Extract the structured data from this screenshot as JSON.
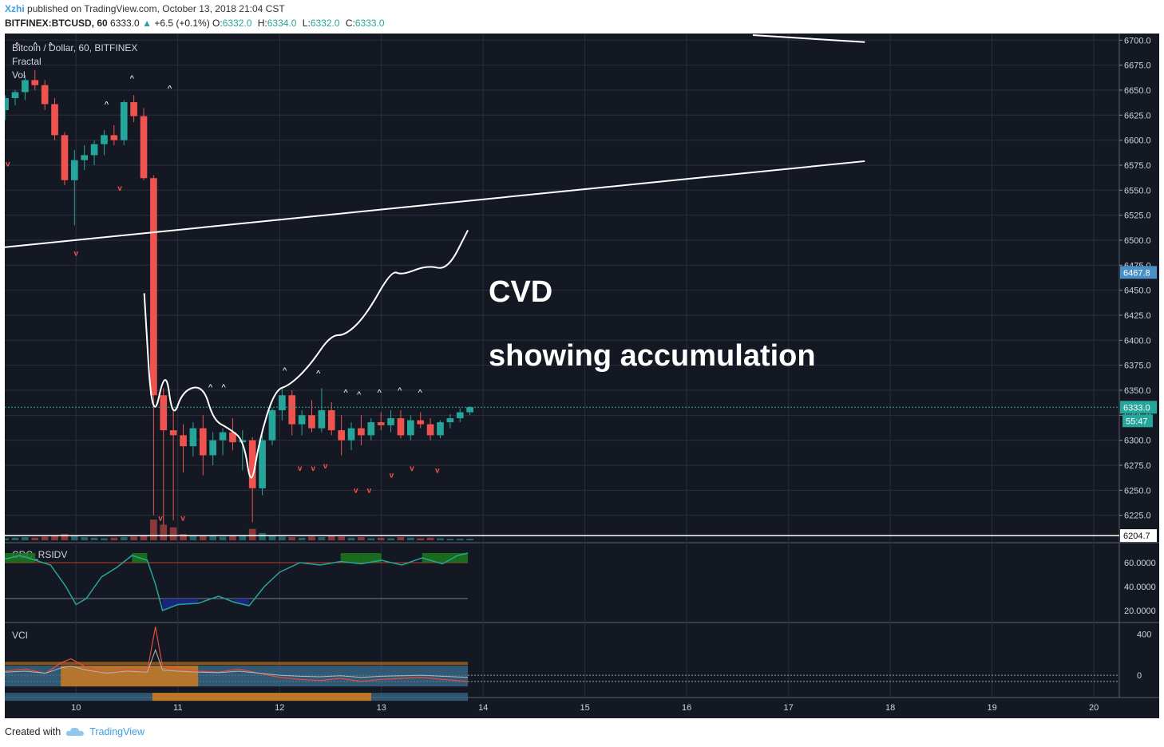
{
  "header": {
    "author": "Xzhi",
    "published_text": "published on TradingView.com, October 13, 2018 21:04 CST"
  },
  "ohlc": {
    "symbol": "BITFINEX:BTCUSD, 60",
    "last": "6333.0",
    "change_arrow": "▲",
    "change": "+6.5 (+0.1%)",
    "o_label": "O:",
    "o": "6332.0",
    "h_label": "H:",
    "h": "6334.0",
    "l_label": "L:",
    "l": "6332.0",
    "c_label": "C:",
    "c": "6333.0"
  },
  "footer": {
    "created_with": "Created with",
    "brand": "TradingView"
  },
  "colors": {
    "background": "#141823",
    "grid": "#2a2f3d",
    "up": "#26a69a",
    "down": "#ef5350",
    "axis_text": "#d0d3da",
    "last_price_badge": "#26a69a",
    "highlight_badge": "#4a90c8",
    "rsi_line": "#26a69a",
    "rsi_overbought_fill": "#1b7a1b",
    "rsi_oversold_fill": "#1a2a8a",
    "vci_orange": "#d67c1c",
    "vci_blue": "#3b6f8f"
  },
  "chart_data": [
    {
      "type": "candlestick",
      "legend": [
        "Bitcoin / Dollar, 60, BITFINEX",
        "Fractal",
        "Vol"
      ],
      "y_ticks": [
        6225.0,
        6250.0,
        6275.0,
        6300.0,
        6325.0,
        6350.0,
        6375.0,
        6400.0,
        6425.0,
        6450.0,
        6475.0,
        6500.0,
        6525.0,
        6550.0,
        6575.0,
        6600.0,
        6625.0,
        6650.0,
        6675.0,
        6700.0
      ],
      "ylim": [
        6200,
        6705
      ],
      "x_ticks": [
        "10",
        "11",
        "12",
        "13",
        "14",
        "15",
        "16",
        "17",
        "18",
        "19",
        "20"
      ],
      "x_tick_values": [
        10,
        11,
        12,
        13,
        14,
        15,
        16,
        17,
        18,
        19,
        20
      ],
      "xlim": [
        9.3,
        20.25
      ],
      "last_price": "6333.0",
      "last_price_value": 6333.0,
      "countdown": "55:47",
      "line_value_label": "6467.8",
      "line_value": 6467.8,
      "low_line_label": "6204.7",
      "low_line_value": 6204.7,
      "trendlines": [
        {
          "x": [
            9.3,
            17.75
          ],
          "y": [
            6493,
            6579
          ]
        },
        {
          "x": [
            16.65,
            17.75
          ],
          "y": [
            6705,
            6698
          ]
        }
      ],
      "annotations": [
        "CVD",
        "showing accumulation"
      ],
      "cvd_curve": [
        [
          10.67,
          6447
        ],
        [
          10.75,
          6312
        ],
        [
          10.88,
          6375
        ],
        [
          10.95,
          6320
        ],
        [
          11.05,
          6350
        ],
        [
          11.25,
          6355
        ],
        [
          11.35,
          6320
        ],
        [
          11.5,
          6312
        ],
        [
          11.65,
          6300
        ],
        [
          11.72,
          6250
        ],
        [
          11.8,
          6300
        ],
        [
          11.95,
          6350
        ],
        [
          12.1,
          6355
        ],
        [
          12.3,
          6375
        ],
        [
          12.5,
          6405
        ],
        [
          12.65,
          6405
        ],
        [
          12.85,
          6425
        ],
        [
          13.1,
          6470
        ],
        [
          13.2,
          6465
        ],
        [
          13.45,
          6475
        ],
        [
          13.65,
          6470
        ],
        [
          13.85,
          6510
        ]
      ],
      "candles": [
        [
          6630,
          6645,
          6620,
          6642
        ],
        [
          6642,
          6650,
          6635,
          6648
        ],
        [
          6648,
          6665,
          6640,
          6660
        ],
        [
          6660,
          6670,
          6650,
          6655
        ],
        [
          6655,
          6660,
          6630,
          6636
        ],
        [
          6636,
          6642,
          6600,
          6605
        ],
        [
          6605,
          6608,
          6555,
          6560
        ],
        [
          6560,
          6590,
          6515,
          6580
        ],
        [
          6580,
          6595,
          6570,
          6585
        ],
        [
          6585,
          6600,
          6575,
          6596
        ],
        [
          6596,
          6610,
          6585,
          6605
        ],
        [
          6605,
          6615,
          6595,
          6600
        ],
        [
          6600,
          6640,
          6595,
          6638
        ],
        [
          6638,
          6645,
          6618,
          6624
        ],
        [
          6624,
          6632,
          6560,
          6562
        ],
        [
          6562,
          6565,
          6225,
          6345
        ],
        [
          6345,
          6352,
          6215,
          6310
        ],
        [
          6310,
          6330,
          6220,
          6305
        ],
        [
          6305,
          6316,
          6268,
          6294
        ],
        [
          6294,
          6318,
          6284,
          6312
        ],
        [
          6312,
          6325,
          6265,
          6285
        ],
        [
          6285,
          6308,
          6275,
          6300
        ],
        [
          6300,
          6312,
          6285,
          6308
        ],
        [
          6308,
          6322,
          6290,
          6298
        ],
        [
          6298,
          6310,
          6270,
          6300
        ],
        [
          6300,
          6303,
          6218,
          6252
        ],
        [
          6252,
          6305,
          6245,
          6300
        ],
        [
          6300,
          6332,
          6295,
          6330
        ],
        [
          6330,
          6352,
          6320,
          6345
        ],
        [
          6345,
          6350,
          6305,
          6316
        ],
        [
          6316,
          6330,
          6305,
          6325
        ],
        [
          6325,
          6340,
          6308,
          6312
        ],
        [
          6312,
          6352,
          6308,
          6330
        ],
        [
          6330,
          6338,
          6305,
          6310
        ],
        [
          6310,
          6325,
          6285,
          6300
        ],
        [
          6300,
          6318,
          6290,
          6312
        ],
        [
          6312,
          6325,
          6295,
          6305
        ],
        [
          6305,
          6322,
          6300,
          6318
        ],
        [
          6318,
          6328,
          6310,
          6315
        ],
        [
          6315,
          6330,
          6308,
          6322
        ],
        [
          6322,
          6330,
          6302,
          6305
        ],
        [
          6305,
          6325,
          6300,
          6320
        ],
        [
          6320,
          6328,
          6312,
          6316
        ],
        [
          6316,
          6322,
          6300,
          6305
        ],
        [
          6305,
          6320,
          6302,
          6318
        ],
        [
          6318,
          6326,
          6312,
          6322
        ],
        [
          6322,
          6332,
          6318,
          6328
        ],
        [
          6328,
          6334,
          6325,
          6333
        ]
      ],
      "volumes": [
        4,
        5,
        6,
        5,
        7,
        9,
        12,
        8,
        6,
        5,
        4,
        5,
        6,
        7,
        10,
        40,
        30,
        25,
        12,
        10,
        8,
        9,
        7,
        10,
        9,
        22,
        14,
        8,
        7,
        6,
        5,
        7,
        6,
        8,
        7,
        5,
        6,
        4,
        5,
        4,
        6,
        5,
        4,
        5,
        4,
        3,
        3,
        3
      ],
      "fractal_up": [
        [
          9.42,
          6695
        ],
        [
          9.6,
          6695
        ],
        [
          9.75,
          6695
        ],
        [
          10.3,
          6636
        ],
        [
          10.55,
          6662
        ],
        [
          10.92,
          6652
        ],
        [
          11.32,
          6353
        ],
        [
          11.45,
          6353
        ],
        [
          12.05,
          6370
        ],
        [
          12.38,
          6367
        ],
        [
          12.65,
          6348
        ],
        [
          12.78,
          6346
        ],
        [
          12.98,
          6348
        ],
        [
          13.18,
          6350
        ],
        [
          13.38,
          6348
        ]
      ],
      "fractal_down": [
        [
          9.33,
          6576
        ],
        [
          10.0,
          6487
        ],
        [
          10.43,
          6552
        ],
        [
          10.83,
          6222
        ],
        [
          11.05,
          6222
        ],
        [
          12.2,
          6272
        ],
        [
          12.33,
          6272
        ],
        [
          12.45,
          6274
        ],
        [
          12.75,
          6250
        ],
        [
          12.88,
          6250
        ],
        [
          13.1,
          6265
        ],
        [
          13.3,
          6272
        ],
        [
          13.55,
          6270
        ]
      ]
    },
    {
      "type": "line",
      "name": "CDC_RSIDV",
      "y_ticks": [
        20.0,
        40.0,
        60.0
      ],
      "y_tick_labels": [
        "20.0000",
        "40.0000",
        "60.0000"
      ],
      "ylim": [
        12,
        74
      ],
      "overbought": 60,
      "oversold": 30,
      "x": [
        9.3,
        9.45,
        9.6,
        9.75,
        9.9,
        10.0,
        10.1,
        10.25,
        10.4,
        10.55,
        10.7,
        10.78,
        10.85,
        11.0,
        11.2,
        11.4,
        11.55,
        11.7,
        11.85,
        12.0,
        12.2,
        12.4,
        12.6,
        12.8,
        13.0,
        13.2,
        13.4,
        13.6,
        13.75,
        13.85
      ],
      "values": [
        63,
        66,
        62,
        58,
        40,
        25,
        30,
        48,
        56,
        66,
        62,
        42,
        20,
        25,
        26,
        32,
        27,
        24,
        40,
        52,
        60,
        58,
        61,
        59,
        62,
        58,
        64,
        59,
        66,
        68
      ]
    },
    {
      "type": "area",
      "name": "VCI",
      "y_ticks": [
        0,
        400
      ],
      "y_tick_labels": [
        "0",
        "400"
      ],
      "ylim": [
        -200,
        480
      ],
      "reference_lines": [
        0,
        -60
      ],
      "x": [
        9.3,
        9.5,
        9.7,
        9.85,
        9.95,
        10.1,
        10.3,
        10.5,
        10.7,
        10.78,
        10.85,
        11.0,
        11.2,
        11.4,
        11.6,
        11.8,
        12.0,
        12.2,
        12.4,
        12.6,
        12.8,
        13.0,
        13.2,
        13.4,
        13.6,
        13.85
      ],
      "values": [
        40,
        60,
        20,
        120,
        160,
        80,
        20,
        60,
        40,
        470,
        80,
        60,
        40,
        30,
        60,
        20,
        -20,
        -40,
        -50,
        -30,
        -60,
        -40,
        -30,
        -20,
        -40,
        -60
      ]
    }
  ]
}
